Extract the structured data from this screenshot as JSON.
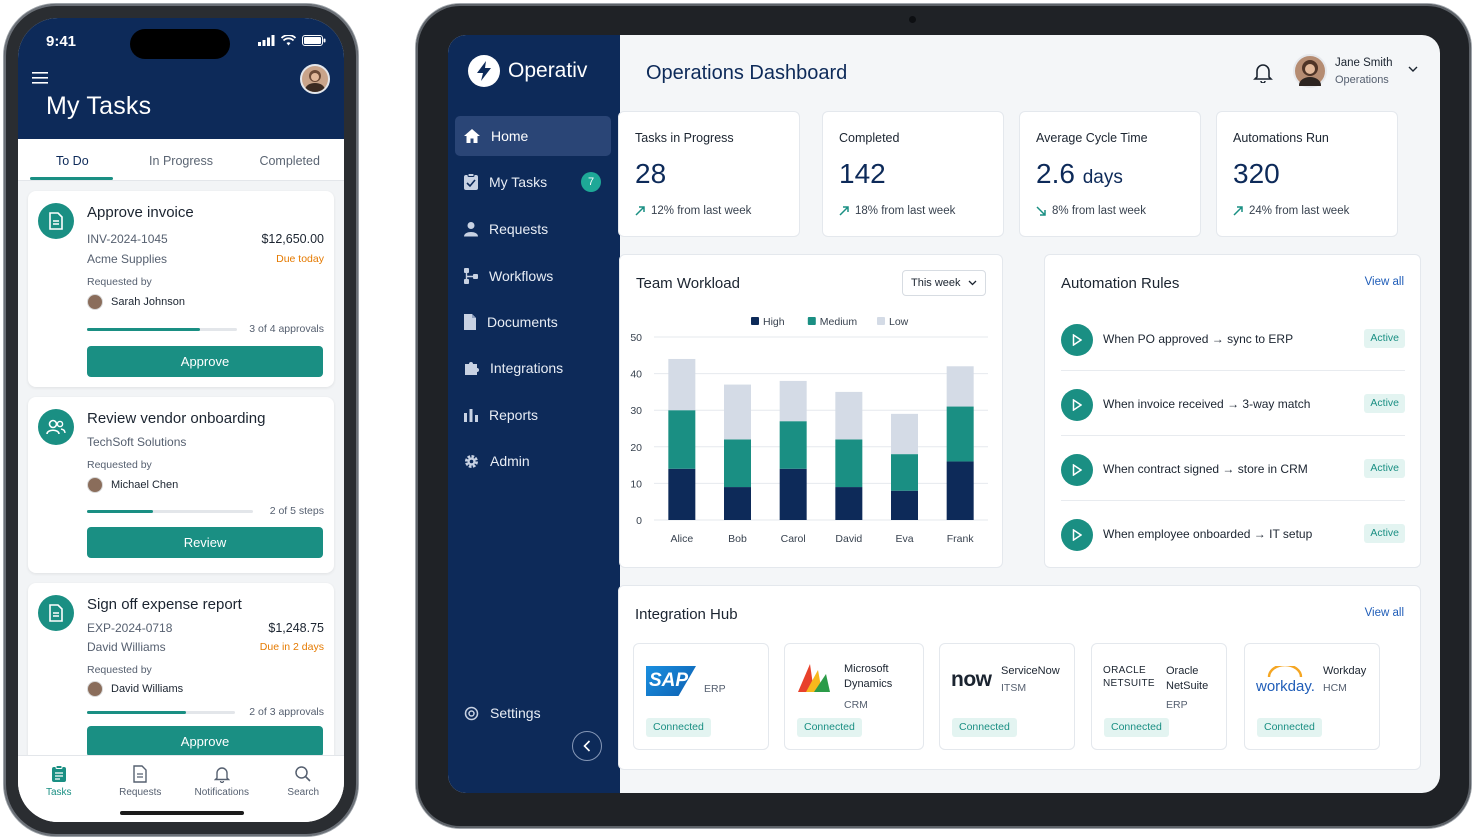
{
  "phone": {
    "status": {
      "time": "9:41"
    },
    "header_title": "My Tasks",
    "tabs": [
      {
        "label": "To Do",
        "active": true
      },
      {
        "label": "In Progress",
        "active": false
      },
      {
        "label": "Completed",
        "active": false
      }
    ],
    "tasks": [
      {
        "title": "Approve invoice",
        "ref": "INV-2024-1045",
        "company": "Acme Supplies",
        "amount": "$12,650.00",
        "due": "Due today",
        "requested_label": "Requested by",
        "requester": "Sarah Johnson",
        "progress": 0.75,
        "progress_label": "3 of 4 approvals",
        "button": "Approve",
        "icon": "document-icon"
      },
      {
        "title": "Review vendor onboarding",
        "company": "TechSoft Solutions",
        "requested_label": "Requested by",
        "requester": "Michael Chen",
        "progress": 0.4,
        "progress_label": "2 of 5 steps",
        "button": "Review",
        "icon": "users-icon"
      },
      {
        "title": "Sign off expense report",
        "ref": "EXP-2024-0718",
        "company": "David Williams",
        "amount": "$1,248.75",
        "due": "Due in 2 days",
        "requested_label": "Requested by",
        "requester": "David Williams",
        "progress": 0.67,
        "progress_label": "2 of 3 approvals",
        "button": "Approve",
        "icon": "document-icon"
      }
    ],
    "bottom_nav": [
      {
        "label": "Tasks",
        "icon": "clipboard-icon",
        "active": true
      },
      {
        "label": "Requests",
        "icon": "document-icon",
        "active": false
      },
      {
        "label": "Notifications",
        "icon": "bell-icon",
        "active": false
      },
      {
        "label": "Search",
        "icon": "search-icon",
        "active": false
      }
    ]
  },
  "tablet": {
    "brand": "Operativ",
    "sidebar": {
      "items": [
        {
          "label": "Home",
          "icon": "home-icon",
          "active": true
        },
        {
          "label": "My Tasks",
          "icon": "clipboard-icon",
          "badge": "7"
        },
        {
          "label": "Requests",
          "icon": "user-icon"
        },
        {
          "label": "Workflows",
          "icon": "workflow-icon"
        },
        {
          "label": "Documents",
          "icon": "document-icon"
        },
        {
          "label": "Integrations",
          "icon": "puzzle-icon"
        },
        {
          "label": "Reports",
          "icon": "bar-chart-icon"
        },
        {
          "label": "Admin",
          "icon": "gear-icon"
        }
      ],
      "settings_label": "Settings"
    },
    "header": {
      "title": "Operations Dashboard",
      "user_name": "Jane Smith",
      "user_role": "Operations"
    },
    "kpis": [
      {
        "label": "Tasks in Progress",
        "value": "28",
        "unit": "",
        "trend": "12% from last week",
        "direction": "up"
      },
      {
        "label": "Completed",
        "value": "142",
        "unit": "",
        "trend": "18% from last week",
        "direction": "up"
      },
      {
        "label": "Average Cycle Time",
        "value": "2.6",
        "unit": "days",
        "trend": "8% from last week",
        "direction": "down"
      },
      {
        "label": "Automations Run",
        "value": "320",
        "unit": "",
        "trend": "24% from last week",
        "direction": "up"
      }
    ],
    "workload": {
      "title": "Team Workload",
      "range_select": "This week"
    },
    "automation": {
      "title": "Automation Rules",
      "view_all": "View all",
      "rules": [
        {
          "trigger": "When PO approved",
          "action": "sync to ERP",
          "status": "Active"
        },
        {
          "trigger": "When invoice received",
          "action": "3-way match",
          "status": "Active"
        },
        {
          "trigger": "When contract signed",
          "action": "store in CRM",
          "status": "Active"
        },
        {
          "trigger": "When employee onboarded",
          "action": "IT setup",
          "status": "Active"
        }
      ]
    },
    "integrations": {
      "title": "Integration Hub",
      "view_all": "View all",
      "items": [
        {
          "logo": "SAP",
          "name": "",
          "category": "ERP",
          "status": "Connected"
        },
        {
          "logo": "",
          "name": "Microsoft Dynamics",
          "category": "CRM",
          "status": "Connected"
        },
        {
          "logo": "now",
          "name": "ServiceNow",
          "category": "ITSM",
          "status": "Connected"
        },
        {
          "logo": "ORACLE NETSUITE",
          "name": "Oracle NetSuite",
          "category": "ERP",
          "status": "Connected"
        },
        {
          "logo": "workday.",
          "name": "Workday",
          "category": "HCM",
          "status": "Connected"
        }
      ]
    }
  },
  "chart_data": {
    "type": "bar",
    "stacked": true,
    "categories": [
      "Alice",
      "Bob",
      "Carol",
      "David",
      "Eva",
      "Frank"
    ],
    "series": [
      {
        "name": "High",
        "color": "#0d2a59",
        "values": [
          14,
          9,
          14,
          9,
          8,
          16
        ]
      },
      {
        "name": "Medium",
        "color": "#1a8f83",
        "values": [
          16,
          13,
          13,
          13,
          10,
          15
        ]
      },
      {
        "name": "Low",
        "color": "#d4dbe6",
        "values": [
          14,
          15,
          11,
          13,
          11,
          11
        ]
      }
    ],
    "y_ticks": [
      0,
      10,
      20,
      30,
      40,
      50
    ],
    "ylim": [
      0,
      50
    ],
    "legend_position": "top-center",
    "grid": true
  }
}
